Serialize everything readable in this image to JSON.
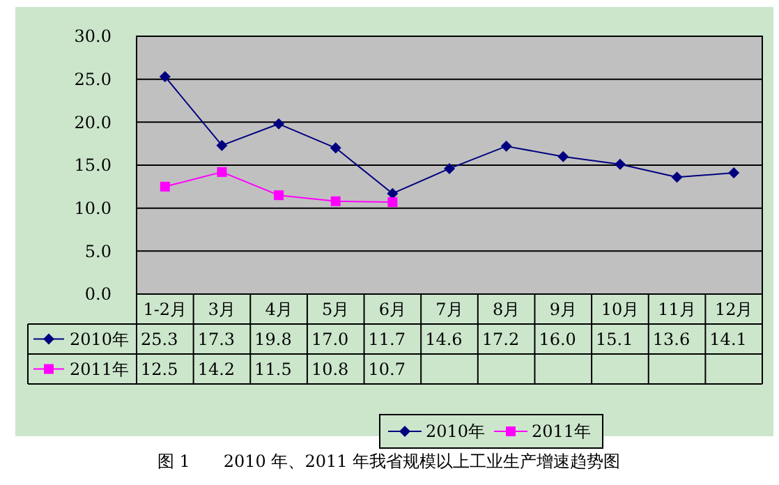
{
  "chart_data": {
    "type": "line",
    "title": "图 1　　2010 年、2011 年我省规模以上工业生产增速趋势图",
    "categories": [
      "1-2月",
      "3月",
      "4月",
      "5月",
      "6月",
      "7月",
      "8月",
      "9月",
      "10月",
      "11月",
      "12月"
    ],
    "series": [
      {
        "name": "2010年",
        "color": "#000080",
        "marker": "diamond",
        "values": [
          25.3,
          17.3,
          19.8,
          17.0,
          11.7,
          14.6,
          17.2,
          16.0,
          15.1,
          13.6,
          14.1
        ],
        "value_labels": [
          "25.3",
          "17.3",
          "19.8",
          "17.0",
          "11.7",
          "14.6",
          "17.2",
          "16.0",
          "15.1",
          "13.6",
          "14.1"
        ]
      },
      {
        "name": "2011年",
        "color": "#ff00ff",
        "marker": "square",
        "values": [
          12.5,
          14.2,
          11.5,
          10.8,
          10.7,
          null,
          null,
          null,
          null,
          null,
          null
        ],
        "value_labels": [
          "12.5",
          "14.2",
          "11.5",
          "10.8",
          "10.7",
          null,
          null,
          null,
          null,
          null,
          null
        ]
      }
    ],
    "ylim": [
      0,
      30
    ],
    "yticks": [
      {
        "value": 0,
        "label": "0.0"
      },
      {
        "value": 5,
        "label": "5.0"
      },
      {
        "value": 10,
        "label": "10.0"
      },
      {
        "value": 15,
        "label": "15.0"
      },
      {
        "value": 20,
        "label": "20.0"
      },
      {
        "value": 25,
        "label": "25.0"
      },
      {
        "value": 30,
        "label": "30.0"
      }
    ],
    "grid": "y",
    "legend": "bottom",
    "line_style": "solid"
  }
}
